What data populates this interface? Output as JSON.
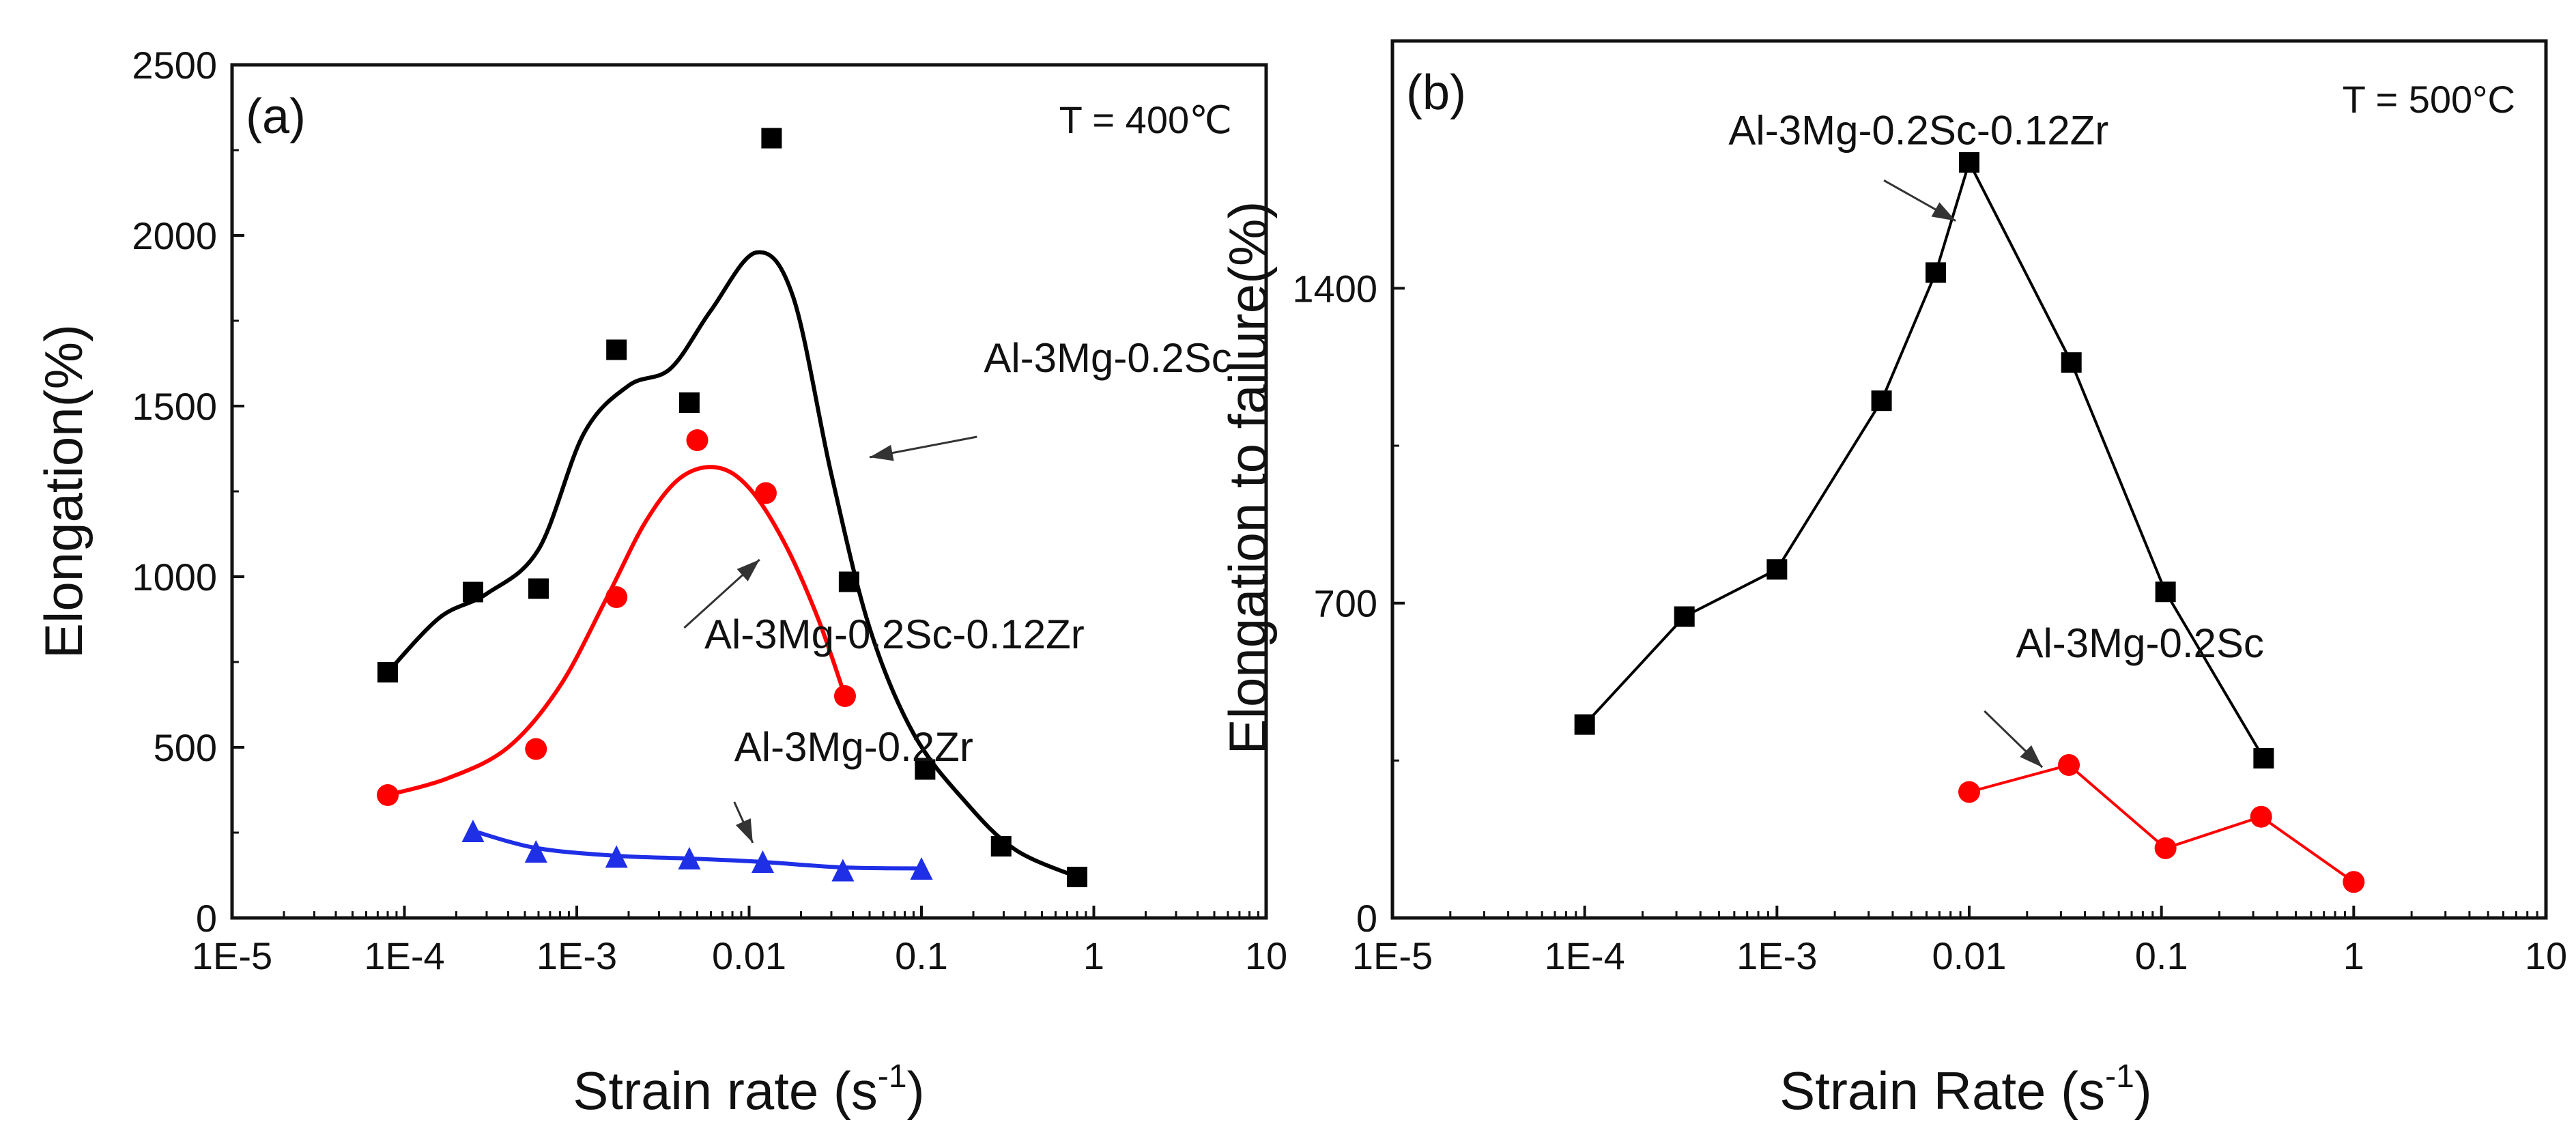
{
  "chart_data": [
    {
      "panel": "(a)",
      "type": "scatter",
      "annotation": "T = 400℃",
      "xlabel": "Strain rate (s⁻¹)",
      "xlabel_main": "Strain rate (s",
      "xlabel_sup": "-1",
      "xlabel_close": ")",
      "ylabel": "Elongation(%)",
      "xscale": "log",
      "xlim": [
        1e-05,
        10
      ],
      "ylim": [
        0,
        2500
      ],
      "xticks": [
        {
          "value": 1e-05,
          "label": "1E-5"
        },
        {
          "value": 0.0001,
          "label": "1E-4"
        },
        {
          "value": 0.001,
          "label": "1E-3"
        },
        {
          "value": 0.01,
          "label": "0.01"
        },
        {
          "value": 0.1,
          "label": "0.1"
        },
        {
          "value": 1,
          "label": "1"
        },
        {
          "value": 10,
          "label": "10"
        }
      ],
      "yticks": [
        {
          "value": 0,
          "label": "0"
        },
        {
          "value": 500,
          "label": "500"
        },
        {
          "value": 1000,
          "label": "1000"
        },
        {
          "value": 1500,
          "label": "1500"
        },
        {
          "value": 2000,
          "label": "2000"
        },
        {
          "value": 2500,
          "label": "2500"
        }
      ],
      "series": [
        {
          "name": "Al-3Mg-0.2Sc",
          "color": "#000000",
          "marker": "square",
          "points": [
            {
              "x": 8e-05,
              "y": 720
            },
            {
              "x": 0.00025,
              "y": 955
            },
            {
              "x": 0.0006,
              "y": 965
            },
            {
              "x": 0.0017,
              "y": 1665
            },
            {
              "x": 0.0045,
              "y": 1510
            },
            {
              "x": 0.0135,
              "y": 2285
            },
            {
              "x": 0.038,
              "y": 985
            },
            {
              "x": 0.105,
              "y": 435
            },
            {
              "x": 0.29,
              "y": 210
            },
            {
              "x": 0.8,
              "y": 120
            }
          ],
          "fit_curve": [
            {
              "x": 8e-05,
              "y": 720
            },
            {
              "x": 0.00016,
              "y": 880
            },
            {
              "x": 0.0003,
              "y": 950
            },
            {
              "x": 0.0006,
              "y": 1080
            },
            {
              "x": 0.0011,
              "y": 1420
            },
            {
              "x": 0.002,
              "y": 1560
            },
            {
              "x": 0.0035,
              "y": 1610
            },
            {
              "x": 0.006,
              "y": 1780
            },
            {
              "x": 0.011,
              "y": 1950
            },
            {
              "x": 0.018,
              "y": 1820
            },
            {
              "x": 0.03,
              "y": 1300
            },
            {
              "x": 0.05,
              "y": 850
            },
            {
              "x": 0.09,
              "y": 540
            },
            {
              "x": 0.18,
              "y": 340
            },
            {
              "x": 0.35,
              "y": 200
            },
            {
              "x": 0.8,
              "y": 120
            }
          ]
        },
        {
          "name": "Al-3Mg-0.2Sc-0.12Zr",
          "color": "#ff0000",
          "marker": "circle",
          "points": [
            {
              "x": 8e-05,
              "y": 360
            },
            {
              "x": 0.00058,
              "y": 495
            },
            {
              "x": 0.0017,
              "y": 940
            },
            {
              "x": 0.005,
              "y": 1400
            },
            {
              "x": 0.0125,
              "y": 1245
            },
            {
              "x": 0.036,
              "y": 650
            }
          ],
          "fit_curve": [
            {
              "x": 8e-05,
              "y": 360
            },
            {
              "x": 0.00018,
              "y": 410
            },
            {
              "x": 0.0004,
              "y": 500
            },
            {
              "x": 0.0008,
              "y": 680
            },
            {
              "x": 0.0015,
              "y": 940
            },
            {
              "x": 0.0025,
              "y": 1160
            },
            {
              "x": 0.004,
              "y": 1290
            },
            {
              "x": 0.0065,
              "y": 1320
            },
            {
              "x": 0.01,
              "y": 1260
            },
            {
              "x": 0.016,
              "y": 1100
            },
            {
              "x": 0.025,
              "y": 880
            },
            {
              "x": 0.036,
              "y": 650
            }
          ]
        },
        {
          "name": "Al-3Mg-0.2Zr",
          "color": "#1f2fe6",
          "marker": "triangle",
          "points": [
            {
              "x": 0.00025,
              "y": 255
            },
            {
              "x": 0.00058,
              "y": 195
            },
            {
              "x": 0.0017,
              "y": 180
            },
            {
              "x": 0.0045,
              "y": 175
            },
            {
              "x": 0.012,
              "y": 165
            },
            {
              "x": 0.035,
              "y": 140
            },
            {
              "x": 0.1,
              "y": 145
            }
          ],
          "fit_curve": [
            {
              "x": 0.00025,
              "y": 255
            },
            {
              "x": 0.00058,
              "y": 205
            },
            {
              "x": 0.0017,
              "y": 182
            },
            {
              "x": 0.0045,
              "y": 174
            },
            {
              "x": 0.012,
              "y": 164
            },
            {
              "x": 0.035,
              "y": 148
            },
            {
              "x": 0.1,
              "y": 145
            }
          ]
        }
      ],
      "annotations": [
        {
          "text": "Al-3Mg-0.2Sc",
          "series": "Al-3Mg-0.2Sc",
          "label_x": 0.23,
          "label_y": 1600,
          "arrow_from": [
            0.21,
            1410
          ],
          "arrow_to": [
            0.05,
            1350
          ]
        },
        {
          "text": "Al-3Mg-0.2Sc-0.12Zr",
          "series": "Al-3Mg-0.2Sc-0.12Zr",
          "label_x": 0.0055,
          "label_y": 790,
          "arrow_from": [
            0.0042,
            850
          ],
          "arrow_to": [
            0.0115,
            1050
          ]
        },
        {
          "text": "Al-3Mg-0.2Zr",
          "series": "Al-3Mg-0.2Zr",
          "label_x": 0.0082,
          "label_y": 460,
          "arrow_from": [
            0.0082,
            340
          ],
          "arrow_to": [
            0.0105,
            220
          ]
        }
      ]
    },
    {
      "panel": "(b)",
      "type": "line",
      "annotation": "T = 500°C",
      "xlabel": "Strain Rate (s⁻¹)",
      "xlabel_main": "Strain Rate (s",
      "xlabel_sup": "-1",
      "xlabel_close": ")",
      "ylabel": "Elongation to failure(%)",
      "xscale": "log",
      "xlim": [
        1e-05,
        10
      ],
      "ylim": [
        0,
        1950
      ],
      "xticks": [
        {
          "value": 1e-05,
          "label": "1E-5"
        },
        {
          "value": 0.0001,
          "label": "1E-4"
        },
        {
          "value": 0.001,
          "label": "1E-3"
        },
        {
          "value": 0.01,
          "label": "0.01"
        },
        {
          "value": 0.1,
          "label": "0.1"
        },
        {
          "value": 1,
          "label": "1"
        },
        {
          "value": 10,
          "label": "10"
        }
      ],
      "yticks": [
        {
          "value": 0,
          "label": "0"
        },
        {
          "value": 700,
          "label": "700"
        },
        {
          "value": 1400,
          "label": "1400"
        }
      ],
      "series": [
        {
          "name": "Al-3Mg-0.2Sc-0.12Zr",
          "color": "#000000",
          "marker": "square",
          "points": [
            {
              "x": 0.0001,
              "y": 430
            },
            {
              "x": 0.00033,
              "y": 670
            },
            {
              "x": 0.001,
              "y": 775
            },
            {
              "x": 0.0035,
              "y": 1150
            },
            {
              "x": 0.0067,
              "y": 1435
            },
            {
              "x": 0.01,
              "y": 1680
            },
            {
              "x": 0.034,
              "y": 1235
            },
            {
              "x": 0.105,
              "y": 725
            },
            {
              "x": 0.34,
              "y": 355
            }
          ]
        },
        {
          "name": "Al-3Mg-0.2Sc",
          "color": "#ff0000",
          "marker": "circle",
          "points": [
            {
              "x": 0.01,
              "y": 280
            },
            {
              "x": 0.033,
              "y": 340
            },
            {
              "x": 0.105,
              "y": 155
            },
            {
              "x": 0.33,
              "y": 225
            },
            {
              "x": 1,
              "y": 80
            }
          ]
        }
      ],
      "annotations": [
        {
          "text": "Al-3Mg-0.2Sc-0.12Zr",
          "series": "Al-3Mg-0.2Sc-0.12Zr",
          "label_x": 0.00056,
          "label_y": 1720,
          "arrow_from": [
            0.0036,
            1640
          ],
          "arrow_to": [
            0.0085,
            1550
          ]
        },
        {
          "text": "Al-3Mg-0.2Sc",
          "series": "Al-3Mg-0.2Sc",
          "label_x": 0.0175,
          "label_y": 580,
          "arrow_from": [
            0.012,
            460
          ],
          "arrow_to": [
            0.024,
            335
          ]
        }
      ]
    }
  ]
}
